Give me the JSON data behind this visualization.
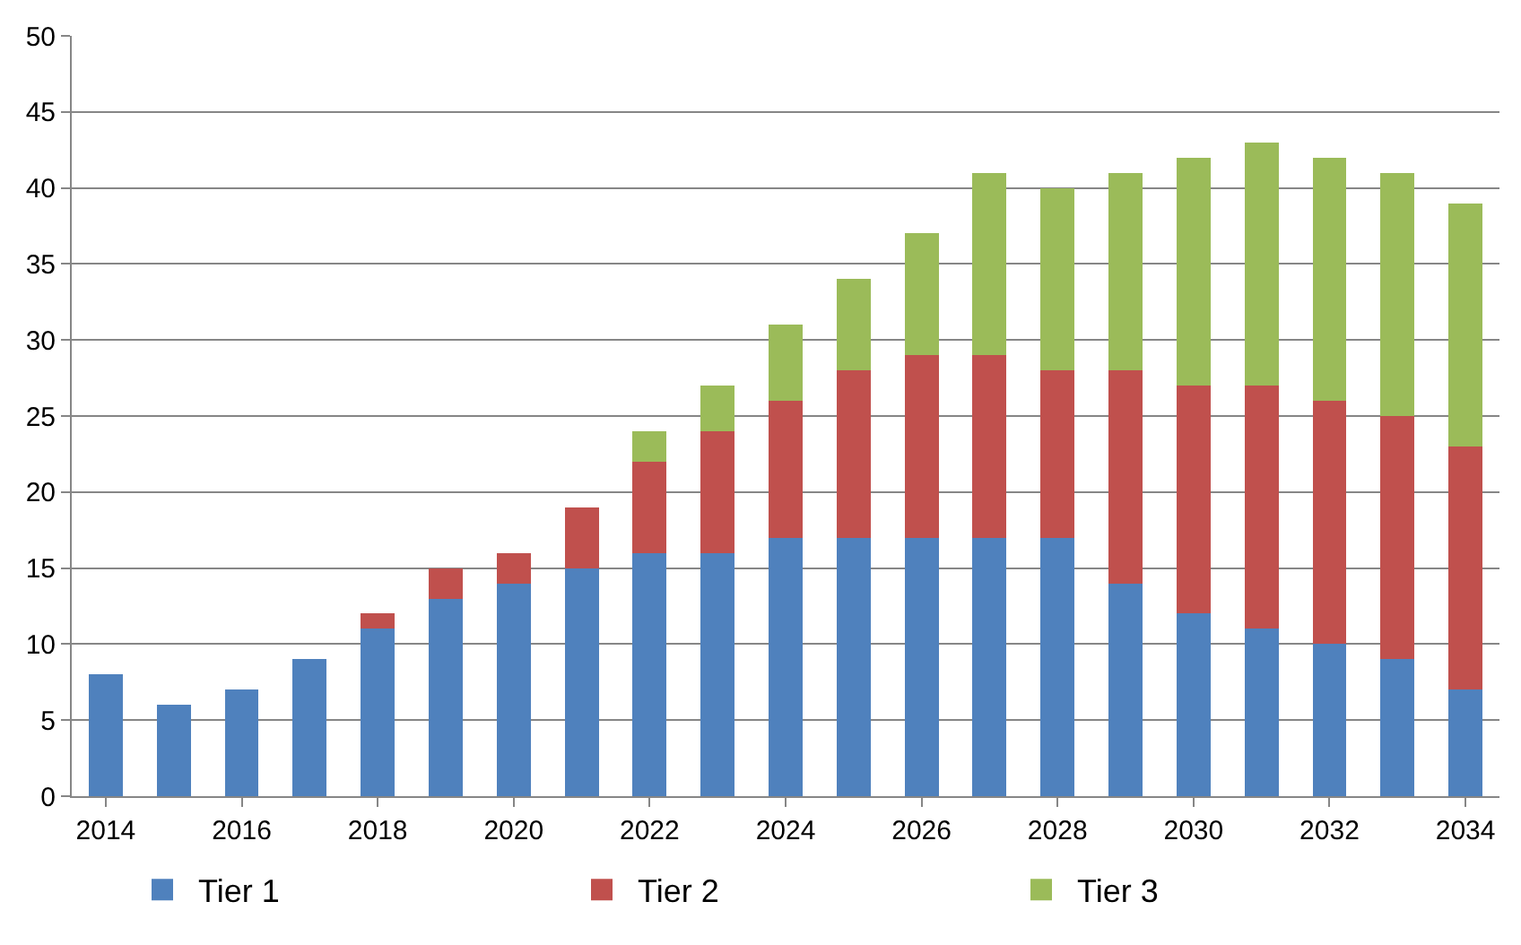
{
  "chart_data": {
    "type": "bar",
    "stacked": true,
    "categories": [
      "2014",
      null,
      "2016",
      null,
      "2018",
      null,
      "2020",
      null,
      "2022",
      null,
      "2024",
      null,
      "2026",
      null,
      "2028",
      null,
      "2030",
      null,
      "2032",
      null,
      "2034"
    ],
    "series": [
      {
        "name": "Tier 1",
        "color": "#4f81bd",
        "values": [
          8,
          6,
          7,
          9,
          11,
          13,
          14,
          15,
          16,
          16,
          17,
          17,
          17,
          17,
          17,
          14,
          12,
          11,
          10,
          9,
          7
        ]
      },
      {
        "name": "Tier 2",
        "color": "#c0504d",
        "values": [
          null,
          null,
          null,
          null,
          1,
          2,
          2,
          4,
          6,
          8,
          9,
          11,
          12,
          12,
          11,
          14,
          15,
          16,
          16,
          16,
          16
        ]
      },
      {
        "name": "Tier 3",
        "color": "#9bbb59",
        "values": [
          null,
          null,
          null,
          null,
          null,
          null,
          null,
          null,
          2,
          3,
          5,
          6,
          8,
          12,
          12,
          13,
          15,
          16,
          16,
          16,
          16
        ]
      }
    ],
    "ylim": [
      0,
      50
    ],
    "yticks": [
      0,
      5,
      10,
      15,
      20,
      25,
      30,
      35,
      40,
      45,
      50
    ],
    "grid": "y",
    "legend": "bottom"
  }
}
